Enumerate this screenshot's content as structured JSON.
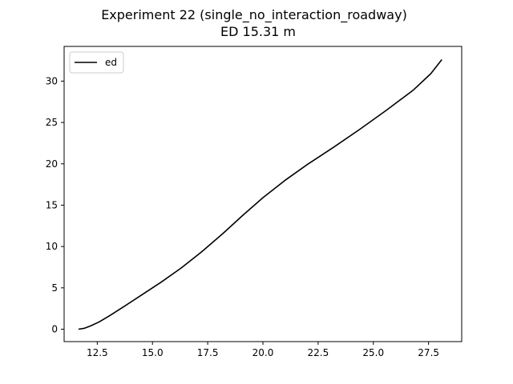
{
  "chart_data": {
    "type": "line",
    "title": "Experiment 22 (single_no_interaction_roadway)",
    "subtitle": "ED 15.31 m",
    "xlabel": "",
    "ylabel": "",
    "xlim": [
      11.0,
      29.0
    ],
    "ylim": [
      -1.5,
      34.2
    ],
    "x_ticks": [
      12.5,
      15.0,
      17.5,
      20.0,
      22.5,
      25.0,
      27.5
    ],
    "x_tick_labels": [
      "12.5",
      "15.0",
      "17.5",
      "20.0",
      "22.5",
      "25.0",
      "27.5"
    ],
    "y_ticks": [
      0,
      5,
      10,
      15,
      20,
      25,
      30
    ],
    "y_tick_labels": [
      "0",
      "5",
      "10",
      "15",
      "20",
      "25",
      "30"
    ],
    "grid": false,
    "legend_position": "top-left",
    "series": [
      {
        "name": "ed",
        "color": "#000000",
        "x": [
          11.65,
          11.9,
          12.2,
          12.6,
          13.1,
          13.8,
          14.6,
          15.4,
          16.3,
          17.2,
          18.2,
          19.1,
          20.0,
          21.0,
          22.0,
          23.2,
          24.4,
          25.6,
          26.8,
          27.6,
          28.1
        ],
        "y": [
          0.0,
          0.1,
          0.4,
          0.9,
          1.7,
          2.9,
          4.3,
          5.7,
          7.4,
          9.3,
          11.6,
          13.8,
          15.9,
          18.0,
          19.9,
          22.0,
          24.2,
          26.5,
          28.9,
          30.9,
          32.6
        ]
      }
    ]
  }
}
